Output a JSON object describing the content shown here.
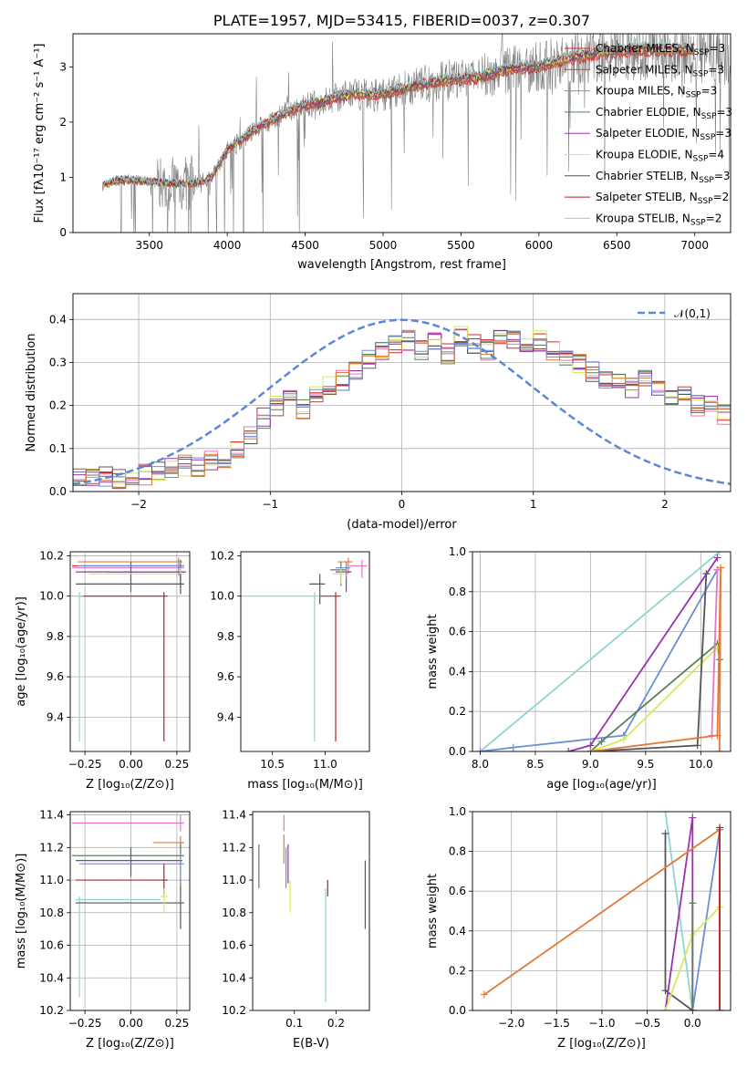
{
  "colors": {
    "Chabrier MILES": "#d62728",
    "Salpeter MILES": "#8c564b",
    "Kroupa MILES": "#e377c2",
    "Chabrier ELODIE": "#5b7f5b",
    "Salpeter ELODIE": "#9b30b0",
    "Kroupa ELODIE": "#d6ea58",
    "Chabrier STELIB": "#555555",
    "Salpeter STELIB": "#b22222",
    "Kroupa STELIB": "#8fd3d3",
    "data": "#808080",
    "normal": "#5a87d6",
    "blue2": "#6a8fd8",
    "orange": "#e07a3a"
  },
  "chart_data": [
    {
      "type": "line",
      "id": "spectrum",
      "title": "PLATE=1957, MJD=53415, FIBERID=0037, z=0.307",
      "xlabel": "wavelength [Angstrom, rest frame]",
      "ylabel": "Flux [fλ10⁻¹⁷ erg cm⁻² s⁻¹ A⁻¹]",
      "xlim": [
        3010,
        7230
      ],
      "ylim": [
        0,
        3.6
      ],
      "xticks": [
        3500,
        4000,
        4500,
        5000,
        5500,
        6000,
        6500,
        7000
      ],
      "yticks": [
        0,
        1,
        2,
        3
      ],
      "grid": false,
      "legend_position": "upper right",
      "legend": [
        "Chabrier MILES, N_SSP=3",
        "Salpeter MILES, N_SSP=3",
        "Kroupa MILES, N_SSP=3",
        "Chabrier ELODIE, N_SSP=3",
        "Salpeter ELODIE, N_SSP=3",
        "Kroupa ELODIE, N_SSP=4",
        "Chabrier STELIB, N_SSP=3",
        "Salpeter STELIB, N_SSP=2",
        "Kroupa STELIB, N_SSP=2"
      ],
      "legend_colors": [
        "#d62728",
        "#8c564b",
        "#e07a3a",
        "#5b7f5b",
        "#9b30b0",
        "#d6ea58",
        "#555555",
        "#b22222",
        "#8fd3d3"
      ],
      "continuum": {
        "x": [
          3200,
          3300,
          3400,
          3500,
          3600,
          3700,
          3800,
          3900,
          4000,
          4100,
          4200,
          4300,
          4400,
          4500,
          4600,
          4700,
          4800,
          4900,
          5000,
          5200,
          5400,
          5600,
          5800,
          6000,
          6200,
          6400,
          6600,
          6800,
          7000
        ],
        "y": [
          0.85,
          0.95,
          0.95,
          0.92,
          0.9,
          0.88,
          0.9,
          1.0,
          1.5,
          1.7,
          1.9,
          2.05,
          2.2,
          2.3,
          2.35,
          2.45,
          2.5,
          2.5,
          2.5,
          2.65,
          2.75,
          2.8,
          2.95,
          3.0,
          3.15,
          3.25,
          3.3,
          3.3,
          3.3
        ]
      }
    },
    {
      "type": "line",
      "id": "residuals",
      "xlabel": "(data-model)/error",
      "ylabel": "Normed distribution",
      "xlim": [
        -2.5,
        2.5
      ],
      "ylim": [
        0,
        0.46
      ],
      "xticks": [
        -2,
        -1,
        0,
        1,
        2
      ],
      "yticks": [
        0.0,
        0.1,
        0.2,
        0.3,
        0.4
      ],
      "grid": true,
      "legend": [
        "𝒩(0,1)"
      ],
      "legend_position": "upper right",
      "bin_edges_start": -2.5,
      "bin_width": 0.1,
      "histogram_mean": [
        0.03,
        0.03,
        0.035,
        0.03,
        0.035,
        0.04,
        0.05,
        0.055,
        0.06,
        0.06,
        0.07,
        0.08,
        0.1,
        0.13,
        0.17,
        0.2,
        0.22,
        0.19,
        0.22,
        0.25,
        0.26,
        0.28,
        0.31,
        0.33,
        0.34,
        0.35,
        0.33,
        0.35,
        0.32,
        0.36,
        0.34,
        0.33,
        0.36,
        0.35,
        0.34,
        0.35,
        0.33,
        0.31,
        0.3,
        0.28,
        0.26,
        0.25,
        0.24,
        0.26,
        0.24,
        0.22,
        0.22,
        0.2,
        0.2,
        0.18,
        0.17,
        0.16,
        0.14,
        0.12,
        0.11,
        0.1,
        0.09,
        0.08,
        0.07,
        0.07,
        0.06,
        0.05,
        0.05,
        0.04,
        0.04,
        0.05,
        0.045,
        0.04,
        0.04,
        0.035
      ]
    },
    {
      "type": "scatter",
      "id": "age-vs-Z",
      "xlabel": "Z [log₁₀(Z/Z⊙)]",
      "ylabel": "age  [log₁₀(age/yr)]",
      "xlim": [
        -0.33,
        0.32
      ],
      "ylim": [
        9.23,
        10.22
      ],
      "xticks": [
        -0.25,
        0.0,
        0.25
      ],
      "xticklabels": [
        "−0.25",
        "0.00",
        "0.25"
      ],
      "yticks": [
        9.4,
        9.6,
        9.8,
        10.0,
        10.2
      ],
      "grid": true,
      "points": [
        {
          "x": 0.27,
          "y": 10.15,
          "xerr": [
            0.59,
            0.02
          ],
          "yerr": [
            0.08,
            0.03
          ],
          "color": "#d62728"
        },
        {
          "x": 0.27,
          "y": 10.14,
          "xerr": [
            0.59,
            0.02
          ],
          "yerr": [
            0.06,
            0.03
          ],
          "color": "#e377c2"
        },
        {
          "x": 0.26,
          "y": 10.17,
          "xerr": [
            0.55,
            0.02
          ],
          "yerr": [
            0.06,
            0.02
          ],
          "color": "#e07a3a"
        },
        {
          "x": 0.27,
          "y": 10.12,
          "xerr": [
            0.4,
            0.02
          ],
          "yerr": [
            0.08,
            0.04
          ],
          "color": "#5b7f5b"
        },
        {
          "x": 0.0,
          "y": 10.12,
          "xerr": [
            0.3,
            0.3
          ],
          "yerr": [
            0.1,
            0.05
          ],
          "color": "#9b30b0"
        },
        {
          "x": 0.27,
          "y": 10.11,
          "xerr": [
            0.5,
            0.02
          ],
          "yerr": [
            0.05,
            0.03
          ],
          "color": "#d6ea58"
        },
        {
          "x": 0.27,
          "y": 10.06,
          "xerr": [
            0.57,
            0.02
          ],
          "yerr": [
            0.05,
            0.05
          ],
          "color": "#555555"
        },
        {
          "x": 0.18,
          "y": 10.0,
          "xerr": [
            0.46,
            0.02
          ],
          "yerr": [
            0.72,
            0.02
          ],
          "color": "#b22222"
        },
        {
          "x": -0.28,
          "y": 10.0,
          "xerr": [
            0.02,
            0.02
          ],
          "yerr": [
            0.72,
            0.02
          ],
          "color": "#8fd3d3"
        },
        {
          "x": 0.26,
          "y": 10.15,
          "xerr": [
            0.55,
            0.03
          ],
          "yerr": [
            0.05,
            0.03
          ],
          "color": "#6a8fd8"
        }
      ]
    },
    {
      "type": "scatter",
      "id": "age-vs-mass",
      "xlabel": "mass [log₁₀(M/M⊙)]",
      "xlim": [
        10.2,
        11.42
      ],
      "ylim": [
        9.23,
        10.22
      ],
      "xticks": [
        10.5,
        11.0
      ],
      "xticklabels": [
        "10.5",
        "11.0"
      ],
      "yticks": [
        9.4,
        9.6,
        9.8,
        10.0,
        10.2
      ],
      "grid": false,
      "points": [
        {
          "x": 11.1,
          "y": 10.0,
          "xerr": [
            0.15,
            0.05
          ],
          "yerr": [
            0.72,
            0.02
          ],
          "color": "#b22222"
        },
        {
          "x": 11.35,
          "y": 10.15,
          "xerr": [
            0.12,
            0.05
          ],
          "yerr": [
            0.06,
            0.03
          ],
          "color": "#e377c2"
        },
        {
          "x": 11.22,
          "y": 10.17,
          "xerr": [
            0.1,
            0.04
          ],
          "yerr": [
            0.06,
            0.02
          ],
          "color": "#e07a3a"
        },
        {
          "x": 11.15,
          "y": 10.13,
          "xerr": [
            0.1,
            0.05
          ],
          "yerr": [
            0.08,
            0.04
          ],
          "color": "#5b7f5b"
        },
        {
          "x": 11.2,
          "y": 10.12,
          "xerr": [
            0.1,
            0.05
          ],
          "yerr": [
            0.1,
            0.05
          ],
          "color": "#9b30b0"
        },
        {
          "x": 11.15,
          "y": 10.11,
          "xerr": [
            0.08,
            0.05
          ],
          "yerr": [
            0.05,
            0.03
          ],
          "color": "#d6ea58"
        },
        {
          "x": 10.95,
          "y": 10.06,
          "xerr": [
            0.1,
            0.05
          ],
          "yerr": [
            0.1,
            0.05
          ],
          "color": "#555555"
        },
        {
          "x": 10.9,
          "y": 10.0,
          "xerr": [
            0.7,
            0.05
          ],
          "yerr": [
            0.72,
            0.02
          ],
          "color": "#8fd3d3"
        },
        {
          "x": 11.2,
          "y": 10.14,
          "xerr": [
            0.1,
            0.04
          ],
          "yerr": [
            0.05,
            0.03
          ],
          "color": "#6a8fd8"
        }
      ]
    },
    {
      "type": "line",
      "id": "massweight-vs-age",
      "xlabel": "age  [log₁₀(age/yr)]",
      "ylabel": "mass weight",
      "xlim": [
        7.93,
        10.27
      ],
      "ylim": [
        0,
        1.0
      ],
      "xticks": [
        8.0,
        8.5,
        9.0,
        9.5,
        10.0
      ],
      "xticklabels": [
        "8.0",
        "8.5",
        "9.0",
        "9.5",
        "10.0"
      ],
      "yticks": [
        0.0,
        0.2,
        0.4,
        0.6,
        0.8,
        1.0
      ],
      "grid": true,
      "series": [
        {
          "color": "#8fd3d3",
          "x": [
            8.0,
            10.17
          ],
          "y": [
            0.0,
            1.0
          ]
        },
        {
          "color": "#6a8fd8",
          "x": [
            8.0,
            8.3,
            9.3,
            10.15
          ],
          "y": [
            0.0,
            0.02,
            0.08,
            0.91
          ]
        },
        {
          "color": "#9b30b0",
          "x": [
            8.8,
            9.0,
            10.15
          ],
          "y": [
            0.0,
            0.03,
            0.97
          ]
        },
        {
          "color": "#5b7f5b",
          "x": [
            9.0,
            9.1,
            10.15,
            10.17
          ],
          "y": [
            0.0,
            0.05,
            0.54,
            0.46
          ]
        },
        {
          "color": "#d6ea58",
          "x": [
            9.0,
            9.3,
            10.15
          ],
          "y": [
            0.0,
            0.06,
            0.52
          ]
        },
        {
          "color": "#555555",
          "x": [
            9.0,
            9.97,
            10.05
          ],
          "y": [
            0.0,
            0.03,
            0.89
          ]
        },
        {
          "color": "#e377c2",
          "x": [
            10.1,
            10.15
          ],
          "y": [
            0.08,
            0.91
          ]
        },
        {
          "color": "#e07a3a",
          "x": [
            9.0,
            10.15,
            10.18,
            10.17
          ],
          "y": [
            0.0,
            0.08,
            0.92,
            0.0
          ]
        }
      ]
    },
    {
      "type": "scatter",
      "id": "mass-vs-Z",
      "xlabel": "Z [log₁₀(Z/Z⊙)]",
      "ylabel": "mass [log₁₀(M/M⊙)]",
      "xlim": [
        -0.33,
        0.32
      ],
      "ylim": [
        10.2,
        11.42
      ],
      "xticks": [
        -0.25,
        0.0,
        0.25
      ],
      "xticklabels": [
        "−0.25",
        "0.00",
        "0.25"
      ],
      "yticks": [
        10.2,
        10.4,
        10.6,
        10.8,
        11.0,
        11.2,
        11.4
      ],
      "grid": true,
      "points": [
        {
          "x": 0.27,
          "y": 11.35,
          "xerr": [
            0.59,
            0.02
          ],
          "yerr": [
            0.05,
            0.05
          ],
          "color": "#e377c2"
        },
        {
          "x": 0.27,
          "y": 11.23,
          "xerr": [
            0.15,
            0.02
          ],
          "yerr": [
            0.05,
            0.04
          ],
          "color": "#e07a3a"
        },
        {
          "x": 0.27,
          "y": 11.15,
          "xerr": [
            0.59,
            0.02
          ],
          "yerr": [
            0.2,
            0.08
          ],
          "color": "#5b7f5b"
        },
        {
          "x": 0.0,
          "y": 11.12,
          "xerr": [
            0.3,
            0.28
          ],
          "yerr": [
            0.1,
            0.08
          ],
          "color": "#9b30b0"
        },
        {
          "x": 0.27,
          "y": 11.1,
          "xerr": [
            0.55,
            0.02
          ],
          "yerr": [
            0.1,
            0.05
          ],
          "color": "#6a8fd8"
        },
        {
          "x": 0.18,
          "y": 11.0,
          "xerr": [
            0.48,
            0.02
          ],
          "yerr": [
            0.1,
            0.1
          ],
          "color": "#b22222"
        },
        {
          "x": -0.28,
          "y": 10.88,
          "xerr": [
            0.02,
            0.44
          ],
          "yerr": [
            0.6,
            0.02
          ],
          "color": "#8fd3d3"
        },
        {
          "x": 0.27,
          "y": 10.86,
          "xerr": [
            0.57,
            0.02
          ],
          "yerr": [
            0.16,
            0.1
          ],
          "color": "#555555"
        },
        {
          "x": 0.18,
          "y": 10.9,
          "xerr": [
            0.02,
            0.02
          ],
          "yerr": [
            0.1,
            0.05
          ],
          "color": "#d6ea58"
        }
      ]
    },
    {
      "type": "scatter",
      "id": "mass-vs-EBV",
      "xlabel": "E(B-V)",
      "xlim": [
        0.0,
        0.28
      ],
      "ylim": [
        10.2,
        11.42
      ],
      "xticks": [
        0.1,
        0.2
      ],
      "xticklabels": [
        "0.1",
        "0.2"
      ],
      "yticks": [
        10.2,
        10.4,
        10.6,
        10.8,
        11.0,
        11.2,
        11.4
      ],
      "grid": false,
      "points": [
        {
          "x": 0.075,
          "y": 11.35,
          "xerr": [
            0,
            0
          ],
          "yerr": [
            0.05,
            0.05
          ],
          "color": "#e377c2"
        },
        {
          "x": 0.075,
          "y": 11.2,
          "xerr": [
            0,
            0
          ],
          "yerr": [
            0.1,
            0.08
          ],
          "color": "#e07a3a"
        },
        {
          "x": 0.015,
          "y": 11.1,
          "xerr": [
            0,
            0
          ],
          "yerr": [
            0.15,
            0.12
          ],
          "color": "#5b7f5b"
        },
        {
          "x": 0.085,
          "y": 11.1,
          "xerr": [
            0,
            0
          ],
          "yerr": [
            0.12,
            0.12
          ],
          "color": "#9b30b0"
        },
        {
          "x": 0.09,
          "y": 10.9,
          "xerr": [
            0,
            0
          ],
          "yerr": [
            0.1,
            0.1
          ],
          "color": "#d6ea58"
        },
        {
          "x": 0.08,
          "y": 11.05,
          "xerr": [
            0,
            0
          ],
          "yerr": [
            0.1,
            0.15
          ],
          "color": "#6a8fd8"
        },
        {
          "x": 0.18,
          "y": 10.95,
          "xerr": [
            0,
            0
          ],
          "yerr": [
            0.05,
            0.05
          ],
          "color": "#b22222"
        },
        {
          "x": 0.175,
          "y": 10.65,
          "xerr": [
            0,
            0
          ],
          "yerr": [
            0.4,
            0.3
          ],
          "color": "#8fd3d3"
        },
        {
          "x": 0.27,
          "y": 10.9,
          "xerr": [
            0,
            0
          ],
          "yerr": [
            0.2,
            0.22
          ],
          "color": "#555555"
        }
      ]
    },
    {
      "type": "line",
      "id": "massweight-vs-Z",
      "xlabel": "Z [log₁₀(Z/Z⊙)]",
      "ylabel": "mass weight",
      "xlim": [
        -2.43,
        0.42
      ],
      "ylim": [
        0,
        1.0
      ],
      "xticks": [
        -2.0,
        -1.5,
        -1.0,
        -0.5,
        0.0
      ],
      "xticklabels": [
        "−2.0",
        "−1.5",
        "−1.0",
        "−0.5",
        "0.0"
      ],
      "yticks": [
        0.0,
        0.2,
        0.4,
        0.6,
        0.8,
        1.0
      ],
      "grid": true,
      "series": [
        {
          "color": "#8fd3d3",
          "x": [
            -0.3,
            0.0
          ],
          "y": [
            1.0,
            0.0
          ]
        },
        {
          "color": "#555555",
          "x": [
            -0.3,
            -0.3,
            0.0
          ],
          "y": [
            0.89,
            0.1,
            0.0
          ]
        },
        {
          "color": "#9b30b0",
          "x": [
            -0.3,
            0.0,
            0.0
          ],
          "y": [
            0.0,
            0.97,
            0.0
          ]
        },
        {
          "color": "#6a8fd8",
          "x": [
            0.0,
            0.3
          ],
          "y": [
            0.0,
            0.91
          ]
        },
        {
          "color": "#d6ea58",
          "x": [
            -0.3,
            0.0,
            0.3
          ],
          "y": [
            0.0,
            0.38,
            0.52
          ]
        },
        {
          "color": "#5b7f5b",
          "x": [
            0.0,
            0.0
          ],
          "y": [
            0.54,
            0.0
          ]
        },
        {
          "color": "#e07a3a",
          "x": [
            -2.3,
            0.3,
            0.3
          ],
          "y": [
            0.08,
            0.91,
            0.0
          ]
        },
        {
          "color": "#b22222",
          "x": [
            0.3,
            0.3
          ],
          "y": [
            0.0,
            0.92
          ]
        }
      ]
    }
  ]
}
